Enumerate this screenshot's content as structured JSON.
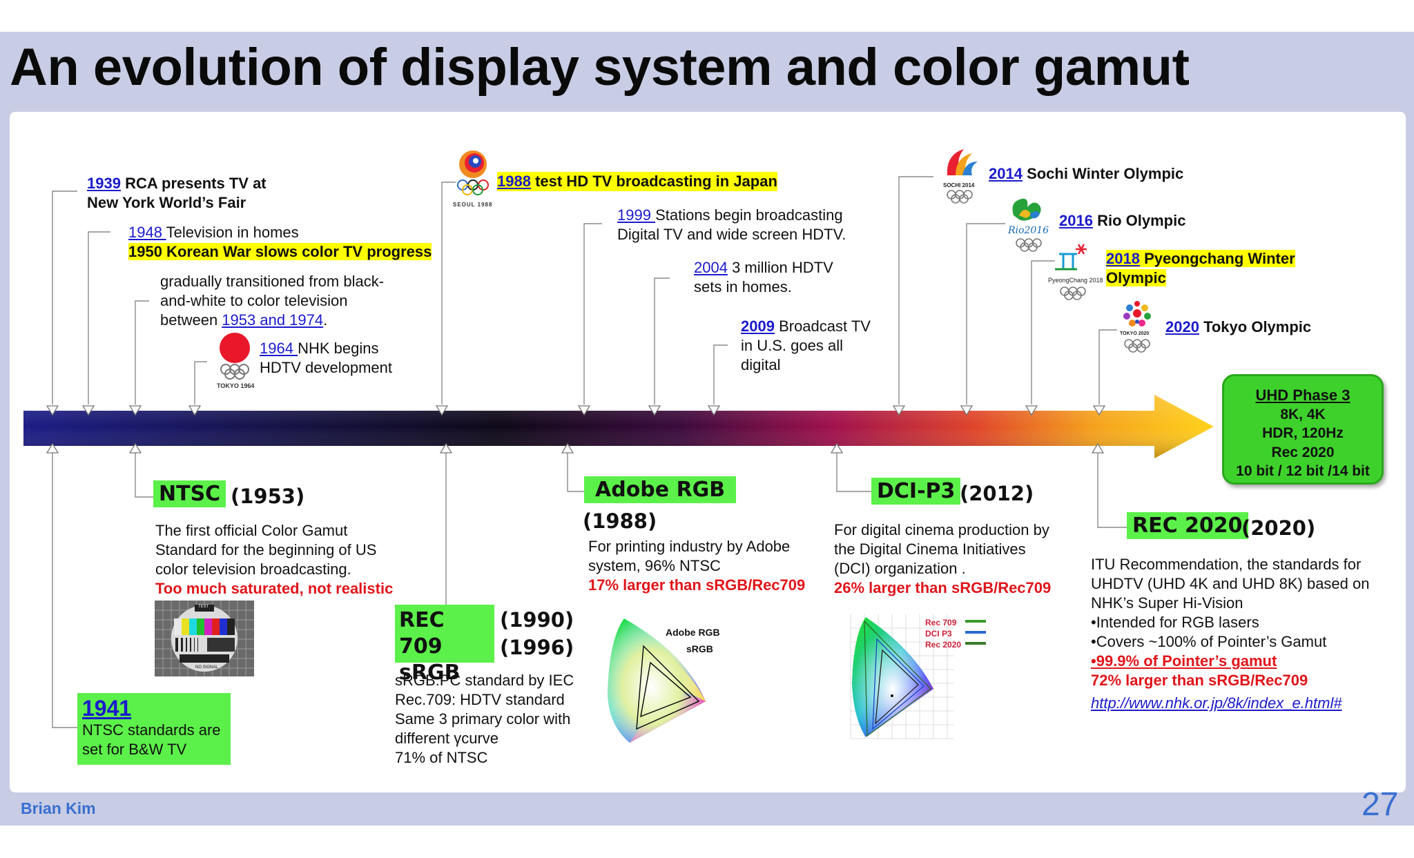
{
  "title": "An evolution of display system and color gamut",
  "author": "Brian Kim",
  "page_number": "27",
  "upper_events": {
    "e1939": {
      "year": "1939",
      "line1": " RCA presents TV at",
      "line2": "New York World’s Fair"
    },
    "e1948": {
      "year": "1948 ",
      "text": "Television in homes",
      "highlight": "1950 Korean War slows color TV progress"
    },
    "transition": {
      "line1": "gradually transitioned from black-",
      "line2": "and-white to color television",
      "line3_pre": "between ",
      "line3_link": "1953 and 1974",
      "line3_post": "."
    },
    "e1964": {
      "year": "1964 ",
      "line1": "NHK begins",
      "line2": "HDTV development",
      "logo_text": "TOKYO 1964"
    },
    "e1988": {
      "year": "1988",
      "text": " test HD TV broadcasting in Japan",
      "logo_text": "SEOUL 1988"
    },
    "e1999": {
      "year": "1999 ",
      "line1": "Stations begin broadcasting",
      "line2": "Digital TV and wide screen HDTV."
    },
    "e2004": {
      "year": "2004",
      "line1": " 3 million HDTV",
      "line2": "sets in homes."
    },
    "e2009": {
      "year": "2009",
      "line1": " Broadcast TV",
      "line2": "in U.S. goes all",
      "line3": "digital"
    },
    "e2014": {
      "year": "2014",
      "text": " Sochi Winter Olympic",
      "logo_text": "SOCHI 2014"
    },
    "e2016": {
      "year": "2016",
      "text": " Rio Olympic",
      "logo_text": "Rio2016"
    },
    "e2018": {
      "year": "2018",
      "line1": " Pyeongchang  Winter",
      "line2": "Olympic",
      "logo_text": "PyeongChang 2018"
    },
    "e2020": {
      "year": "2020",
      "text": " Tokyo Olympic",
      "logo_text": "TOKYO 2020"
    }
  },
  "lower_events": {
    "ntsc": {
      "name": "NTSC",
      "year": "(1953)",
      "line1": "The first official Color Gamut",
      "line2": "Standard for the beginning of US",
      "line3": "color television broadcasting.",
      "warning": "Too much saturated, not realistic",
      "card_top": "TEST",
      "card_bottom": "NO SIGNAL"
    },
    "e1941": {
      "year": "1941",
      "line1": "NTSC standards are",
      "line2": "set for B&W TV"
    },
    "rec709": {
      "name1": "REC 709",
      "name2": "sRGB",
      "year1": "(1990)",
      "year2": "(1996)",
      "line1": "sRGB:PC standard by IEC",
      "line2": "Rec.709: HDTV standard",
      "line3": "Same 3 primary color with",
      "line4": "different γcurve",
      "line5": "71%  of NTSC"
    },
    "adobe": {
      "name": "Adobe RGB",
      "year": "(1988)",
      "line1": "For printing industry by Adobe",
      "line2": "system, 96% NTSC",
      "highlight": "17% larger than sRGB/Rec709",
      "label1": "Adobe RGB",
      "label2": "sRGB"
    },
    "dcip3": {
      "name": "DCI-P3",
      "year": "(2012)",
      "line1": "For digital cinema production by",
      "line2": "the Digital Cinema Initiatives",
      "line3": "(DCI) organization .",
      "highlight": "26% larger than sRGB/Rec709",
      "legend1": "Rec 709",
      "legend2": "DCI P3",
      "legend3": "Rec 2020"
    },
    "rec2020": {
      "name": "REC 2020",
      "year": "(2020)",
      "line1": "ITU Recommendation, the standards for",
      "line2": "UHDTV (UHD 4K and UHD 8K) based on",
      "line3": "NHK’s Super Hi-Vision",
      "bullet1": "•Intended for RGB lasers",
      "bullet2": "•Covers ~100% of Pointer’s Gamut",
      "bullet3": "•99.9% of Pointer’s gamut",
      "bullet4": "72% larger than sRGB/Rec709",
      "link": "http://www.nhk.or.jp/8k/index_e.html#"
    }
  },
  "uhd_box": {
    "heading": "UHD Phase 3",
    "line1": "8K, 4K",
    "line2": "HDR, 120Hz",
    "line3": "Rec 2020",
    "line4": "10 bit / 12 bit /14 bit"
  },
  "colors": {
    "arrow_start": "#1c1c86",
    "arrow_mid": "#120a2a",
    "arrow_red": "#b01050",
    "arrow_end": "#ffd21a",
    "highlight": "#ffff00",
    "box_green": "#5cf04a",
    "link_blue": "#1a1acc",
    "warning_red": "#e0151a"
  }
}
